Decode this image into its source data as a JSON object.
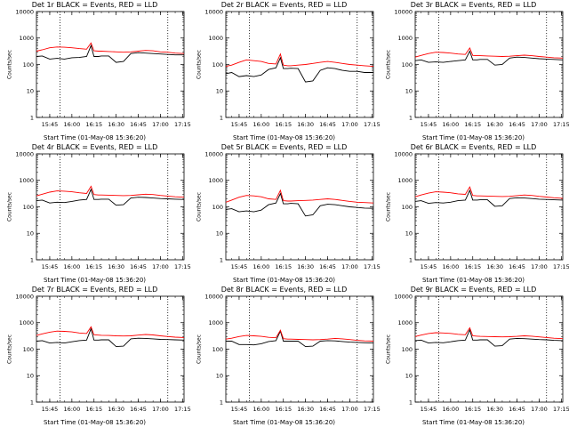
{
  "figure": {
    "x_title": "Start Time (01-May-08 15:36:20)",
    "y_title": "Counts/sec"
  },
  "chart_data": [
    {
      "type": "line",
      "title": "Det 1r BLACK = Events, RED = LLD",
      "xlabel": "Start Time (01-May-08 15:36:20)",
      "ylabel": "Counts/sec",
      "yscale": "log",
      "ylim": [
        1,
        10000
      ],
      "xlim": [
        "15:36",
        "17:16"
      ],
      "x_ticks": [
        "15:45",
        "16:00",
        "16:15",
        "16:30",
        "16:45",
        "17:00",
        "17:15"
      ],
      "y_ticks": [
        "1",
        "10",
        "100",
        "1000",
        "10000"
      ],
      "vlines": [
        "15:52",
        "17:05"
      ],
      "x": [
        "15:36",
        "15:40",
        "15:45",
        "15:50",
        "15:55",
        "16:00",
        "16:05",
        "16:10",
        "16:13",
        "16:15",
        "16:18",
        "16:20",
        "16:25",
        "16:30",
        "16:35",
        "16:40",
        "16:45",
        "16:50",
        "16:55",
        "17:00",
        "17:05",
        "17:10",
        "17:16"
      ],
      "series": [
        {
          "name": "Events",
          "color": "#000000",
          "values": [
            200,
            210,
            160,
            170,
            160,
            180,
            185,
            200,
            520,
            200,
            200,
            210,
            210,
            120,
            130,
            260,
            280,
            270,
            260,
            250,
            240,
            230,
            230
          ]
        },
        {
          "name": "LLD",
          "color": "#ff0000",
          "values": [
            320,
            360,
            430,
            460,
            450,
            430,
            400,
            380,
            650,
            330,
            320,
            320,
            310,
            300,
            290,
            300,
            320,
            340,
            330,
            300,
            290,
            270,
            260
          ]
        }
      ]
    },
    {
      "type": "line",
      "title": "Det 2r BLACK = Events, RED = LLD",
      "xlabel": "Start Time (01-May-08 15:36:20)",
      "ylabel": "Counts/sec",
      "yscale": "log",
      "ylim": [
        1,
        10000
      ],
      "xlim": [
        "15:36",
        "17:16"
      ],
      "x_ticks": [
        "15:45",
        "16:00",
        "16:15",
        "16:30",
        "16:45",
        "17:00",
        "17:15"
      ],
      "y_ticks": [
        "1",
        "10",
        "100",
        "1000",
        "10000"
      ],
      "vlines": [
        "15:52",
        "17:05"
      ],
      "x": [
        "15:36",
        "15:40",
        "15:45",
        "15:50",
        "15:55",
        "16:00",
        "16:05",
        "16:10",
        "16:13",
        "16:15",
        "16:18",
        "16:20",
        "16:25",
        "16:30",
        "16:35",
        "16:40",
        "16:45",
        "16:50",
        "16:55",
        "17:00",
        "17:05",
        "17:10",
        "17:16"
      ],
      "series": [
        {
          "name": "Events",
          "color": "#000000",
          "values": [
            45,
            50,
            35,
            38,
            35,
            40,
            65,
            75,
            180,
            70,
            70,
            72,
            70,
            22,
            24,
            60,
            75,
            70,
            60,
            55,
            55,
            50,
            50
          ]
        },
        {
          "name": "LLD",
          "color": "#ff0000",
          "values": [
            85,
            95,
            120,
            150,
            140,
            130,
            110,
            105,
            250,
            95,
            90,
            90,
            95,
            100,
            110,
            120,
            130,
            120,
            110,
            100,
            95,
            90,
            85
          ]
        }
      ]
    },
    {
      "type": "line",
      "title": "Det 3r BLACK = Events, RED = LLD",
      "xlabel": "Start Time (01-May-08 15:36:20)",
      "ylabel": "Counts/sec",
      "yscale": "log",
      "ylim": [
        1,
        10000
      ],
      "xlim": [
        "15:36",
        "17:16"
      ],
      "x_ticks": [
        "15:45",
        "16:00",
        "16:15",
        "16:30",
        "16:45",
        "17:00",
        "17:15"
      ],
      "y_ticks": [
        "1",
        "10",
        "100",
        "1000",
        "10000"
      ],
      "vlines": [
        "15:52",
        "17:05"
      ],
      "x": [
        "15:36",
        "15:40",
        "15:45",
        "15:50",
        "15:55",
        "16:00",
        "16:05",
        "16:10",
        "16:13",
        "16:15",
        "16:18",
        "16:20",
        "16:25",
        "16:30",
        "16:35",
        "16:40",
        "16:45",
        "16:50",
        "16:55",
        "17:00",
        "17:05",
        "17:10",
        "17:16"
      ],
      "series": [
        {
          "name": "Events",
          "color": "#000000",
          "values": [
            140,
            150,
            120,
            125,
            120,
            130,
            140,
            150,
            320,
            150,
            150,
            155,
            155,
            95,
            100,
            175,
            190,
            185,
            175,
            165,
            160,
            155,
            150
          ]
        },
        {
          "name": "LLD",
          "color": "#ff0000",
          "values": [
            190,
            220,
            260,
            290,
            285,
            270,
            250,
            240,
            420,
            220,
            215,
            215,
            210,
            205,
            200,
            205,
            215,
            225,
            215,
            200,
            190,
            180,
            175
          ]
        }
      ]
    },
    {
      "type": "line",
      "title": "Det 4r BLACK = Events, RED = LLD",
      "xlabel": "Start Time (01-May-08 15:36:20)",
      "ylabel": "Counts/sec",
      "yscale": "log",
      "ylim": [
        1,
        10000
      ],
      "xlim": [
        "15:36",
        "17:16"
      ],
      "x_ticks": [
        "15:45",
        "16:00",
        "16:15",
        "16:30",
        "16:45",
        "17:00",
        "17:15"
      ],
      "y_ticks": [
        "1",
        "10",
        "100",
        "1000",
        "10000"
      ],
      "vlines": [
        "15:52",
        "17:05"
      ],
      "x": [
        "15:36",
        "15:40",
        "15:45",
        "15:50",
        "15:55",
        "16:00",
        "16:05",
        "16:10",
        "16:13",
        "16:15",
        "16:18",
        "16:20",
        "16:25",
        "16:30",
        "16:35",
        "16:40",
        "16:45",
        "16:50",
        "16:55",
        "17:00",
        "17:05",
        "17:10",
        "17:16"
      ],
      "series": [
        {
          "name": "Events",
          "color": "#000000",
          "values": [
            170,
            180,
            140,
            150,
            145,
            160,
            180,
            190,
            460,
            190,
            190,
            195,
            195,
            115,
            120,
            215,
            230,
            225,
            215,
            205,
            200,
            195,
            190
          ]
        },
        {
          "name": "LLD",
          "color": "#ff0000",
          "values": [
            260,
            300,
            360,
            400,
            390,
            370,
            340,
            320,
            600,
            290,
            280,
            280,
            275,
            270,
            265,
            270,
            285,
            300,
            290,
            270,
            255,
            240,
            230
          ]
        }
      ]
    },
    {
      "type": "line",
      "title": "Det 5r BLACK = Events, RED = LLD",
      "xlabel": "Start Time (01-May-08 15:36:20)",
      "ylabel": "Counts/sec",
      "yscale": "log",
      "ylim": [
        1,
        10000
      ],
      "xlim": [
        "15:36",
        "17:16"
      ],
      "x_ticks": [
        "15:45",
        "16:00",
        "16:15",
        "16:30",
        "16:45",
        "17:00",
        "17:15"
      ],
      "y_ticks": [
        "1",
        "10",
        "100",
        "1000",
        "10000"
      ],
      "vlines": [
        "15:52",
        "17:05"
      ],
      "x": [
        "15:36",
        "15:40",
        "15:45",
        "15:50",
        "15:55",
        "16:00",
        "16:05",
        "16:10",
        "16:13",
        "16:15",
        "16:18",
        "16:20",
        "16:25",
        "16:30",
        "16:35",
        "16:40",
        "16:45",
        "16:50",
        "16:55",
        "17:00",
        "17:05",
        "17:10",
        "17:16"
      ],
      "series": [
        {
          "name": "Events",
          "color": "#000000",
          "values": [
            80,
            85,
            65,
            70,
            65,
            75,
            120,
            140,
            320,
            130,
            130,
            135,
            130,
            45,
            50,
            110,
            125,
            120,
            110,
            100,
            95,
            90,
            88
          ]
        },
        {
          "name": "LLD",
          "color": "#ff0000",
          "values": [
            150,
            180,
            230,
            270,
            260,
            240,
            200,
            190,
            420,
            170,
            165,
            165,
            170,
            175,
            180,
            190,
            200,
            190,
            175,
            160,
            150,
            145,
            140
          ]
        }
      ]
    },
    {
      "type": "line",
      "title": "Det 6r BLACK = Events, RED = LLD",
      "xlabel": "Start Time (01-May-08 15:36:20)",
      "ylabel": "Counts/sec",
      "yscale": "log",
      "ylim": [
        1,
        10000
      ],
      "xlim": [
        "15:36",
        "17:16"
      ],
      "x_ticks": [
        "15:45",
        "16:00",
        "16:15",
        "16:30",
        "16:45",
        "17:00",
        "17:15"
      ],
      "y_ticks": [
        "1",
        "10",
        "100",
        "1000",
        "10000"
      ],
      "vlines": [
        "15:52",
        "17:05"
      ],
      "x": [
        "15:36",
        "15:40",
        "15:45",
        "15:50",
        "15:55",
        "16:00",
        "16:05",
        "16:10",
        "16:13",
        "16:15",
        "16:18",
        "16:20",
        "16:25",
        "16:30",
        "16:35",
        "16:40",
        "16:45",
        "16:50",
        "16:55",
        "17:00",
        "17:05",
        "17:10",
        "17:16"
      ],
      "series": [
        {
          "name": "Events",
          "color": "#000000",
          "values": [
            160,
            170,
            135,
            145,
            140,
            150,
            170,
            180,
            420,
            180,
            180,
            185,
            185,
            105,
            110,
            205,
            220,
            215,
            205,
            195,
            190,
            185,
            180
          ]
        },
        {
          "name": "LLD",
          "color": "#ff0000",
          "values": [
            240,
            280,
            330,
            370,
            360,
            340,
            310,
            295,
            560,
            270,
            260,
            260,
            255,
            250,
            245,
            250,
            265,
            280,
            270,
            250,
            235,
            220,
            210
          ]
        }
      ]
    },
    {
      "type": "line",
      "title": "Det 7r BLACK = Events, RED = LLD",
      "xlabel": "Start Time (01-May-08 15:36:20)",
      "ylabel": "Counts/sec",
      "yscale": "log",
      "ylim": [
        1,
        10000
      ],
      "xlim": [
        "15:36",
        "17:16"
      ],
      "x_ticks": [
        "15:45",
        "16:00",
        "16:15",
        "16:30",
        "16:45",
        "17:00",
        "17:15"
      ],
      "y_ticks": [
        "1",
        "10",
        "100",
        "1000",
        "10000"
      ],
      "vlines": [
        "15:52",
        "17:05"
      ],
      "x": [
        "15:36",
        "15:40",
        "15:45",
        "15:50",
        "15:55",
        "16:00",
        "16:05",
        "16:10",
        "16:13",
        "16:15",
        "16:18",
        "16:20",
        "16:25",
        "16:30",
        "16:35",
        "16:40",
        "16:45",
        "16:50",
        "16:55",
        "17:00",
        "17:05",
        "17:10",
        "17:16"
      ],
      "series": [
        {
          "name": "Events",
          "color": "#000000",
          "values": [
            200,
            210,
            170,
            180,
            170,
            190,
            210,
            220,
            600,
            220,
            220,
            225,
            225,
            125,
            130,
            245,
            260,
            255,
            245,
            235,
            230,
            225,
            220
          ]
        },
        {
          "name": "LLD",
          "color": "#ff0000",
          "values": [
            330,
            380,
            440,
            480,
            470,
            450,
            410,
            390,
            700,
            350,
            340,
            335,
            330,
            320,
            315,
            320,
            340,
            360,
            345,
            320,
            300,
            285,
            275
          ]
        }
      ]
    },
    {
      "type": "line",
      "title": "Det 8r BLACK = Events, RED = LLD",
      "xlabel": "Start Time (01-May-08 15:36:20)",
      "ylabel": "Counts/sec",
      "yscale": "log",
      "ylim": [
        1,
        10000
      ],
      "xlim": [
        "15:36",
        "17:16"
      ],
      "x_ticks": [
        "15:45",
        "16:00",
        "16:15",
        "16:30",
        "16:45",
        "17:00",
        "17:15"
      ],
      "y_ticks": [
        "1",
        "10",
        "100",
        "1000",
        "10000"
      ],
      "vlines": [
        "15:52",
        "17:05"
      ],
      "x": [
        "15:36",
        "15:40",
        "15:45",
        "15:50",
        "15:55",
        "16:00",
        "16:05",
        "16:10",
        "16:13",
        "16:15",
        "16:18",
        "16:20",
        "16:25",
        "16:30",
        "16:35",
        "16:40",
        "16:45",
        "16:50",
        "16:55",
        "17:00",
        "17:05",
        "17:10",
        "17:16"
      ],
      "series": [
        {
          "name": "Events",
          "color": "#000000",
          "values": [
            200,
            200,
            150,
            150,
            145,
            160,
            195,
            210,
            480,
            200,
            200,
            200,
            200,
            125,
            130,
            200,
            210,
            205,
            195,
            185,
            180,
            175,
            170
          ]
        },
        {
          "name": "LLD",
          "color": "#ff0000",
          "values": [
            240,
            260,
            300,
            330,
            320,
            305,
            280,
            270,
            520,
            250,
            240,
            240,
            235,
            230,
            225,
            230,
            240,
            255,
            245,
            230,
            215,
            205,
            200
          ]
        }
      ]
    },
    {
      "type": "line",
      "title": "Det 9r BLACK = Events, RED = LLD",
      "xlabel": "Start Time (01-May-08 15:36:20)",
      "ylabel": "Counts/sec",
      "yscale": "log",
      "ylim": [
        1,
        10000
      ],
      "xlim": [
        "15:36",
        "17:16"
      ],
      "x_ticks": [
        "15:45",
        "16:00",
        "16:15",
        "16:30",
        "16:45",
        "17:00",
        "17:15"
      ],
      "y_ticks": [
        "1",
        "10",
        "100",
        "1000",
        "10000"
      ],
      "vlines": [
        "15:52",
        "17:05"
      ],
      "x": [
        "15:36",
        "15:40",
        "15:45",
        "15:50",
        "15:55",
        "16:00",
        "16:05",
        "16:10",
        "16:13",
        "16:15",
        "16:18",
        "16:20",
        "16:25",
        "16:30",
        "16:35",
        "16:40",
        "16:45",
        "16:50",
        "16:55",
        "17:00",
        "17:05",
        "17:10",
        "17:16"
      ],
      "series": [
        {
          "name": "Events",
          "color": "#000000",
          "values": [
            210,
            220,
            170,
            180,
            175,
            190,
            210,
            220,
            540,
            220,
            220,
            225,
            225,
            130,
            135,
            240,
            255,
            250,
            240,
            230,
            225,
            215,
            210
          ]
        },
        {
          "name": "LLD",
          "color": "#ff0000",
          "values": [
            300,
            340,
            390,
            420,
            410,
            395,
            365,
            350,
            640,
            320,
            310,
            305,
            300,
            295,
            290,
            295,
            305,
            320,
            310,
            290,
            275,
            260,
            250
          ]
        }
      ]
    }
  ]
}
